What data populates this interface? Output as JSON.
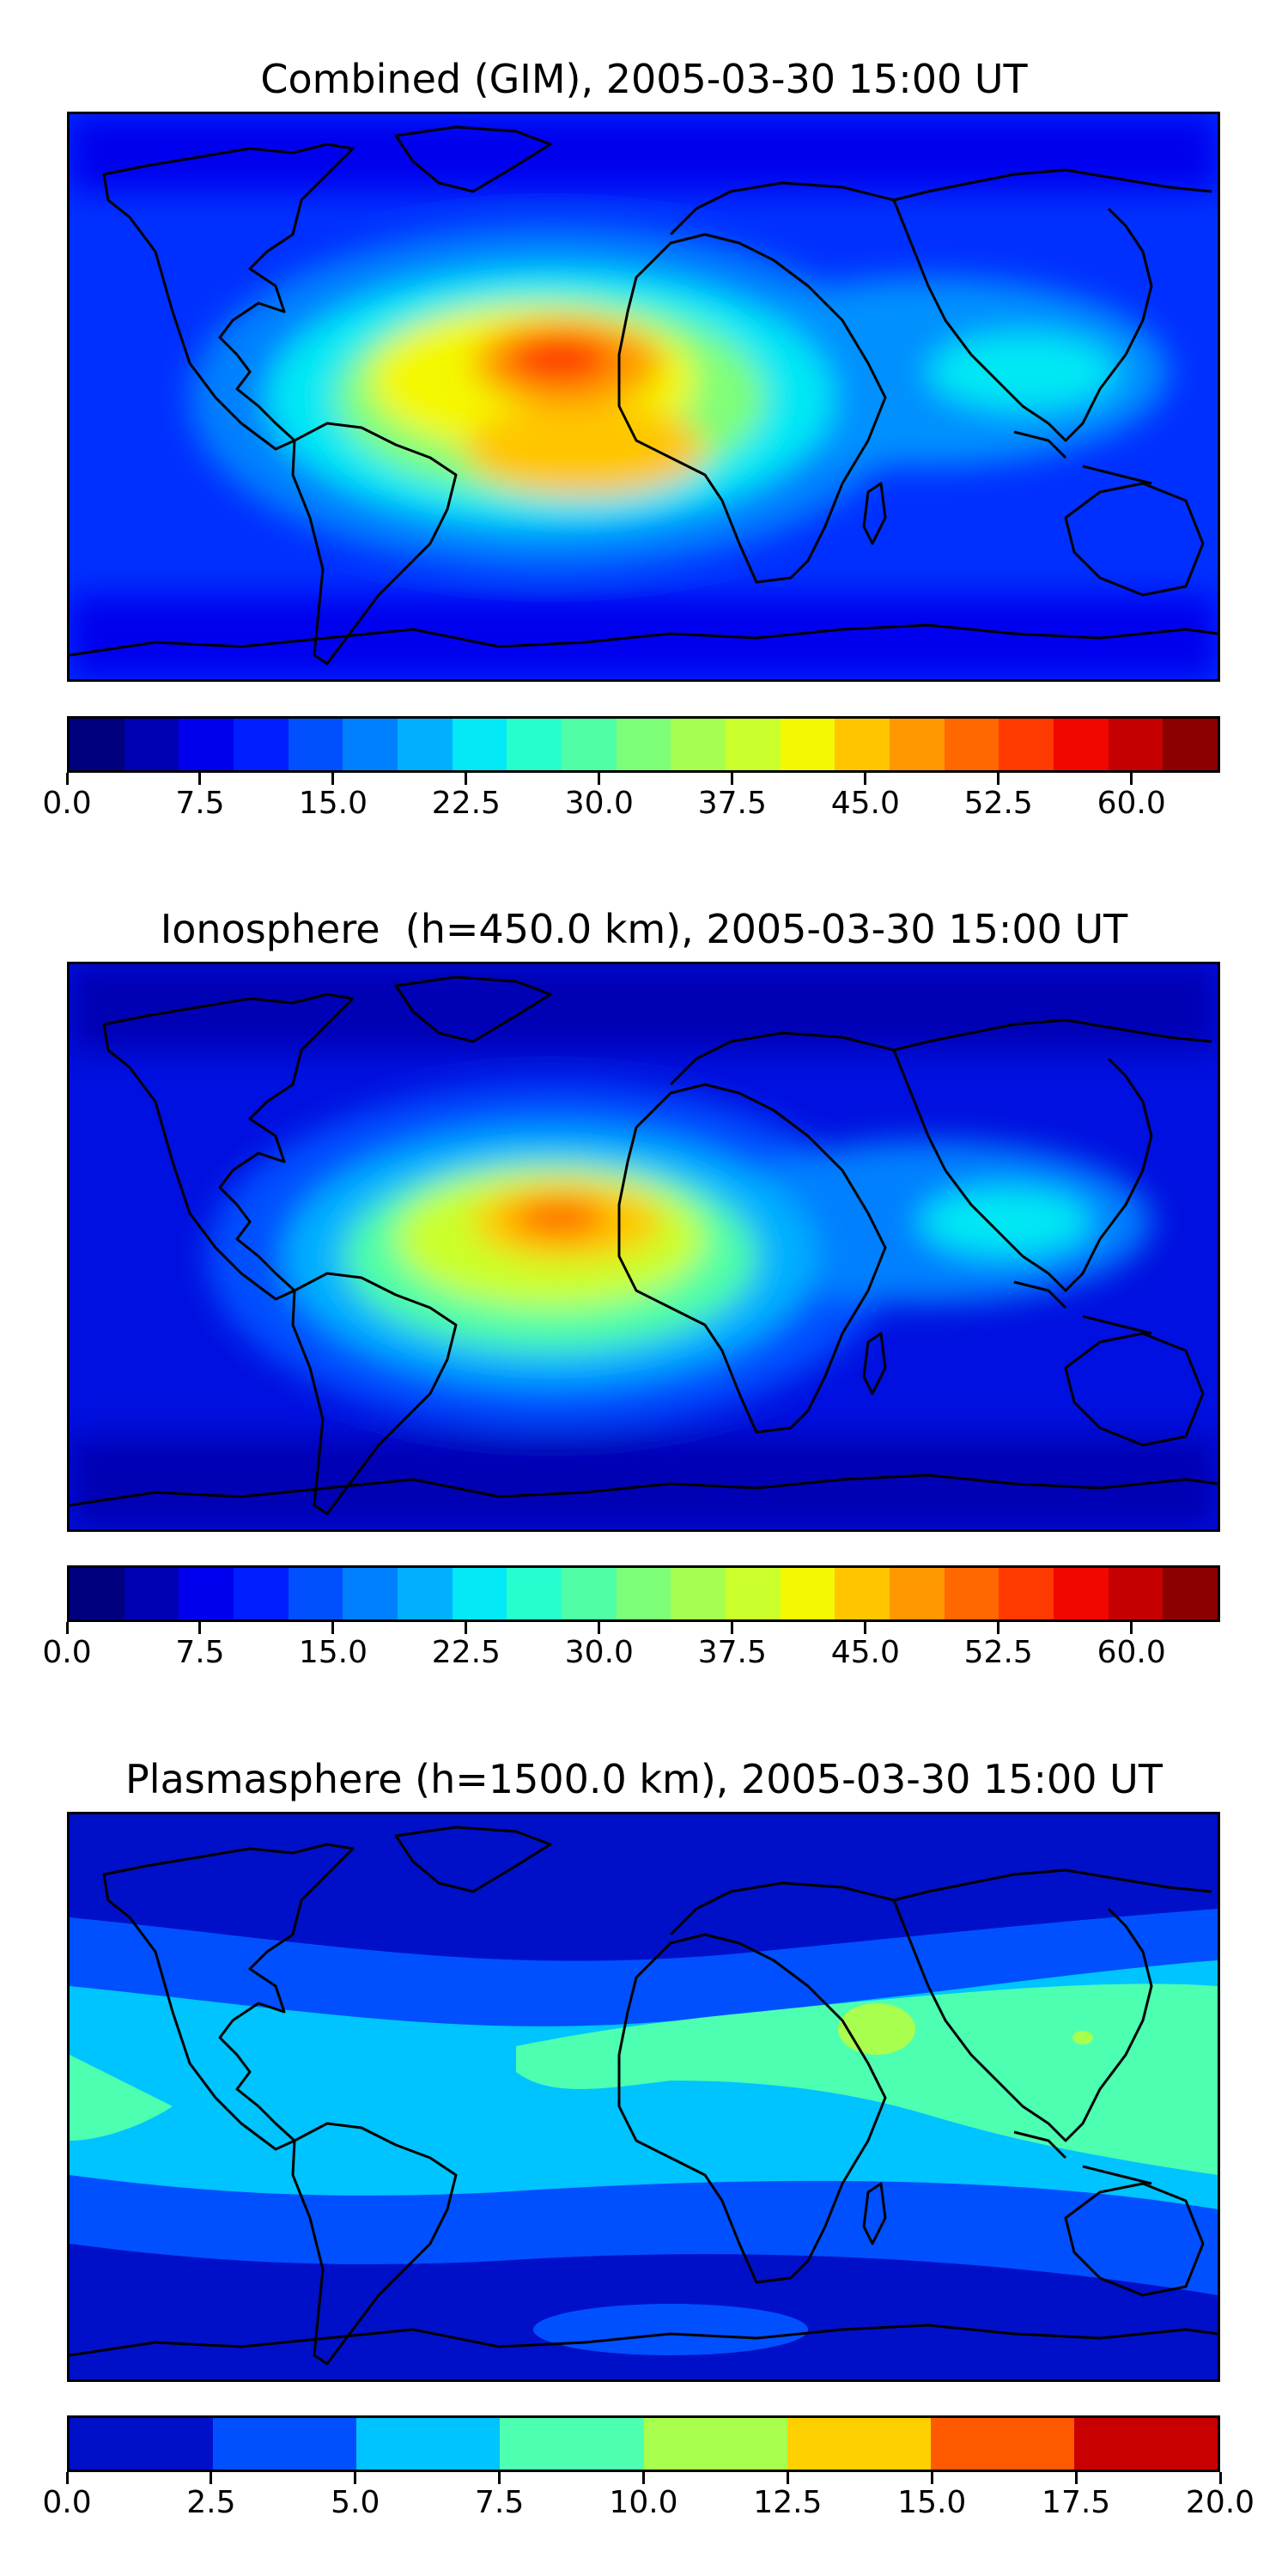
{
  "panels": [
    {
      "title": "Combined (GIM), 2005-03-30 15:00 UT",
      "colorbar": {
        "ticks": [
          "0.0",
          "7.5",
          "15.0",
          "22.5",
          "30.0",
          "37.5",
          "45.0",
          "52.5",
          "60.0"
        ],
        "range": [
          0,
          65
        ],
        "colors": [
          "#00007f",
          "#0000b4",
          "#0000ee",
          "#001eff",
          "#0050ff",
          "#0080ff",
          "#00b0ff",
          "#02e8f4",
          "#26fecf",
          "#50fea6",
          "#7efe78",
          "#a6ff50",
          "#caff2c",
          "#f4f802",
          "#ffc600",
          "#ff9800",
          "#ff6800",
          "#ff3a00",
          "#f10700",
          "#c40000",
          "#8c0000"
        ]
      }
    },
    {
      "title": "Ionosphere  (h=450.0 km), 2005-03-30 15:00 UT",
      "colorbar": {
        "ticks": [
          "0.0",
          "7.5",
          "15.0",
          "22.5",
          "30.0",
          "37.5",
          "45.0",
          "52.5",
          "60.0"
        ],
        "range": [
          0,
          65
        ],
        "colors": [
          "#00007f",
          "#0000b4",
          "#0000ee",
          "#001eff",
          "#0050ff",
          "#0080ff",
          "#00b0ff",
          "#02e8f4",
          "#26fecf",
          "#50fea6",
          "#7efe78",
          "#a6ff50",
          "#caff2c",
          "#f4f802",
          "#ffc600",
          "#ff9800",
          "#ff6800",
          "#ff3a00",
          "#f10700",
          "#c40000",
          "#8c0000"
        ]
      }
    },
    {
      "title": "Plasmasphere (h=1500.0 km), 2005-03-30 15:00 UT",
      "colorbar": {
        "ticks": [
          "0.0",
          "2.5",
          "5.0",
          "7.5",
          "10.0",
          "12.5",
          "15.0",
          "17.5",
          "20.0"
        ],
        "range": [
          0,
          20
        ],
        "colors": [
          "#0010c8",
          "#0050ff",
          "#00c4ff",
          "#4dffb0",
          "#a8ff4e",
          "#ffd000",
          "#ff5a00",
          "#c80000"
        ]
      }
    }
  ]
}
